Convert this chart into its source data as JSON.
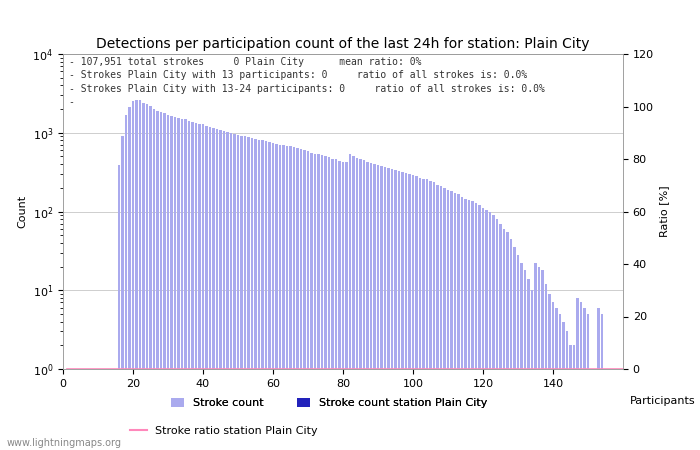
{
  "title": "Detections per participation count of the last 24h for station: Plain City",
  "xlabel": "Participants",
  "ylabel_left": "Count",
  "ylabel_right": "Ratio [%]",
  "annotation_lines": [
    "- 107,951 total strokes     0 Plain City      mean ratio: 0%",
    "- Strokes Plain City with 13 participants: 0     ratio of all strokes is: 0.0%",
    "- Strokes Plain City with 13-24 participants: 0     ratio of all strokes is: 0.0%",
    "-"
  ],
  "watermark": "www.lightningmaps.org",
  "bar_color_light": "#aaaaee",
  "bar_color_dark": "#2222bb",
  "ratio_line_color": "#ff88bb",
  "xlim": [
    0,
    160
  ],
  "ylim_log_min": 1,
  "ylim_log_max": 10000,
  "ylim_ratio_min": 0,
  "ylim_ratio_max": 120,
  "yticks_ratio": [
    0,
    20,
    40,
    60,
    80,
    100,
    120
  ],
  "xticks": [
    0,
    20,
    40,
    60,
    80,
    100,
    120,
    140
  ],
  "bar_values": [
    0,
    0,
    0,
    0,
    0,
    0,
    0,
    0,
    0,
    0,
    0,
    0,
    0,
    0,
    0,
    390,
    900,
    1700,
    2100,
    2500,
    2600,
    2600,
    2400,
    2300,
    2200,
    2000,
    1900,
    1850,
    1800,
    1700,
    1650,
    1600,
    1560,
    1500,
    1480,
    1400,
    1350,
    1320,
    1300,
    1280,
    1220,
    1180,
    1150,
    1120,
    1080,
    1050,
    1020,
    990,
    970,
    950,
    920,
    900,
    880,
    860,
    840,
    820,
    800,
    780,
    760,
    740,
    720,
    700,
    690,
    680,
    670,
    660,
    640,
    620,
    600,
    580,
    560,
    540,
    530,
    520,
    500,
    490,
    470,
    460,
    440,
    430,
    420,
    540,
    500,
    480,
    470,
    450,
    430,
    410,
    400,
    390,
    380,
    370,
    360,
    350,
    340,
    330,
    320,
    310,
    300,
    290,
    280,
    270,
    260,
    255,
    245,
    235,
    220,
    210,
    200,
    190,
    180,
    170,
    165,
    155,
    145,
    140,
    135,
    130,
    120,
    110,
    105,
    100,
    90,
    80,
    70,
    60,
    55,
    45,
    35,
    28,
    22,
    18,
    14,
    10,
    22,
    20,
    18,
    12,
    9,
    7,
    6,
    5,
    4,
    3,
    2,
    2,
    8,
    7,
    6,
    5,
    1,
    1,
    6,
    5,
    1,
    1,
    1,
    1,
    1,
    1
  ],
  "station_bar_values": [
    0,
    0,
    0,
    0,
    0,
    0,
    0,
    0,
    0,
    0,
    0,
    0,
    0,
    0,
    0,
    0,
    0,
    0,
    0,
    0,
    0,
    0,
    0,
    0,
    0,
    0,
    0,
    0,
    0,
    0,
    0,
    0,
    0,
    0,
    0,
    0,
    0,
    0,
    0,
    0,
    0,
    0,
    0,
    0,
    0,
    0,
    0,
    0,
    0,
    0,
    0,
    0,
    0,
    0,
    0,
    0,
    0,
    0,
    0,
    0,
    0,
    0,
    0,
    0,
    0,
    0,
    0,
    0,
    0,
    0,
    0,
    0,
    0,
    0,
    0,
    0,
    0,
    0,
    0,
    0,
    0,
    0,
    0,
    0,
    0,
    0,
    0,
    0,
    0,
    0,
    0,
    0,
    0,
    0,
    0,
    0,
    0,
    0,
    0,
    0,
    0,
    0,
    0,
    0,
    0,
    0,
    0,
    0,
    0,
    0,
    0,
    0,
    0,
    0,
    0,
    0,
    0,
    0,
    0,
    0,
    0,
    0,
    0,
    0,
    0,
    0,
    0,
    0,
    0,
    0,
    0,
    0,
    0,
    0,
    0,
    0,
    0,
    0,
    0,
    0,
    0,
    0,
    0,
    0,
    0,
    0,
    0,
    0,
    0,
    0,
    0,
    0,
    0,
    0,
    0,
    0,
    0,
    0,
    0,
    0
  ],
  "ratio_values": [
    0,
    0,
    0,
    0,
    0,
    0,
    0,
    0,
    0,
    0,
    0,
    0,
    0,
    0,
    0,
    0,
    0,
    0,
    0,
    0,
    0,
    0,
    0,
    0,
    0,
    0,
    0,
    0,
    0,
    0,
    0,
    0,
    0,
    0,
    0,
    0,
    0,
    0,
    0,
    0,
    0,
    0,
    0,
    0,
    0,
    0,
    0,
    0,
    0,
    0,
    0,
    0,
    0,
    0,
    0,
    0,
    0,
    0,
    0,
    0,
    0,
    0,
    0,
    0,
    0,
    0,
    0,
    0,
    0,
    0,
    0,
    0,
    0,
    0,
    0,
    0,
    0,
    0,
    0,
    0,
    0,
    0,
    0,
    0,
    0,
    0,
    0,
    0,
    0,
    0,
    0,
    0,
    0,
    0,
    0,
    0,
    0,
    0,
    0,
    0,
    0,
    0,
    0,
    0,
    0,
    0,
    0,
    0,
    0,
    0,
    0,
    0,
    0,
    0,
    0,
    0,
    0,
    0,
    0,
    0,
    0,
    0,
    0,
    0,
    0,
    0,
    0,
    0,
    0,
    0,
    0,
    0,
    0,
    0,
    0,
    0,
    0,
    0,
    0,
    0,
    0,
    0,
    0,
    0,
    0,
    0,
    0,
    0,
    0,
    0,
    0,
    0,
    0,
    0,
    0,
    0,
    0,
    0,
    0,
    0
  ],
  "grid_color": "#bbbbbb",
  "bg_color": "#ffffff",
  "title_fontsize": 10,
  "annotation_fontsize": 7,
  "axis_fontsize": 8,
  "tick_fontsize": 8,
  "watermark_fontsize": 7,
  "bar_width": 0.7
}
